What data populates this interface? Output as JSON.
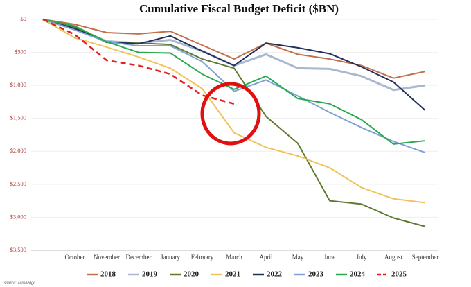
{
  "chart_data": {
    "type": "line",
    "title": "Cumulative Fiscal Budget Deficit ($BN)",
    "source": "source: Zerohedge",
    "categories": [
      null,
      "October",
      "November",
      "December",
      "January",
      "February",
      "March",
      "April",
      "May",
      "June",
      "July",
      "August",
      "September"
    ],
    "ylim": [
      0,
      3500
    ],
    "y_inverted": true,
    "yticks": [
      {
        "value": 0,
        "label": "$0"
      },
      {
        "value": 500,
        "label": "$500"
      },
      {
        "value": 1000,
        "label": "$1,000"
      },
      {
        "value": 1500,
        "label": "$1,500"
      },
      {
        "value": 2000,
        "label": "$2,000"
      },
      {
        "value": 2500,
        "label": "$2,500"
      },
      {
        "value": 3000,
        "label": "$3,000"
      },
      {
        "value": 3500,
        "label": "$3,500"
      }
    ],
    "grid": true,
    "legend": "bottom",
    "series": [
      {
        "name": "2018",
        "color": "#c0704a",
        "values": [
          0,
          75,
          200,
          220,
          180,
          390,
          600,
          360,
          530,
          600,
          700,
          890,
          790
        ]
      },
      {
        "name": "2019",
        "color": "#a9b8d0",
        "values": [
          0,
          130,
          330,
          360,
          310,
          480,
          700,
          530,
          740,
          750,
          860,
          1070,
          1000
        ]
      },
      {
        "name": "2020",
        "color": "#5e7a2f",
        "values": [
          0,
          120,
          350,
          360,
          380,
          600,
          740,
          1470,
          1880,
          2750,
          2800,
          3010,
          3140
        ]
      },
      {
        "name": "2021",
        "color": "#f0c35a",
        "values": [
          0,
          280,
          420,
          570,
          740,
          1050,
          1720,
          1940,
          2070,
          2250,
          2550,
          2720,
          2780
        ]
      },
      {
        "name": "2022",
        "color": "#23305a",
        "values": [
          0,
          140,
          340,
          370,
          250,
          480,
          700,
          360,
          430,
          520,
          720,
          950,
          1380
        ]
      },
      {
        "name": "2023",
        "color": "#7ea2d4",
        "values": [
          0,
          160,
          340,
          400,
          400,
          640,
          1090,
          920,
          1160,
          1410,
          1640,
          1850,
          2020
        ]
      },
      {
        "name": "2024",
        "color": "#28a84f",
        "values": [
          0,
          100,
          340,
          500,
          510,
          830,
          1060,
          860,
          1200,
          1280,
          1520,
          1890,
          1840
        ]
      },
      {
        "name": "2025",
        "color": "#e02020",
        "dashed": true,
        "values": [
          0,
          230,
          620,
          700,
          830,
          1150,
          1280,
          null,
          null,
          null,
          null,
          null,
          null
        ]
      }
    ]
  }
}
